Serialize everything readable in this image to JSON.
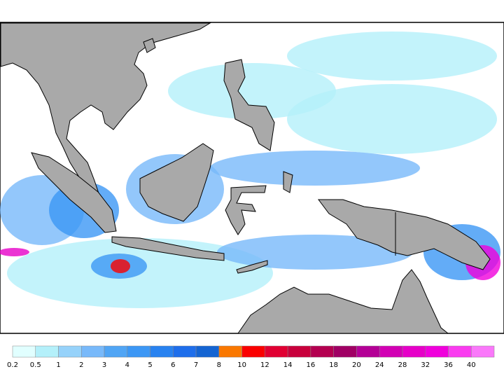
{
  "legend": {
    "labels": [
      "0.2",
      "0.5",
      "1",
      "2",
      "3",
      "4",
      "5",
      "6",
      "7",
      "8",
      "10",
      "12",
      "14",
      "16",
      "18",
      "20",
      "24",
      "28",
      "32",
      "36",
      "40"
    ],
    "colors": [
      "#e1ffff",
      "#b4f0fa",
      "#96d2fa",
      "#78b9fa",
      "#50a5f5",
      "#3c97f5",
      "#2882f0",
      "#1e6eeb",
      "#1464d2",
      "#fa7800",
      "#fa0000",
      "#e10032",
      "#c8003c",
      "#b40050",
      "#a00064",
      "#b40096",
      "#d200b4",
      "#e600c8",
      "#f000dc",
      "#fa3cf0",
      "#fa78fa"
    ]
  }
}
